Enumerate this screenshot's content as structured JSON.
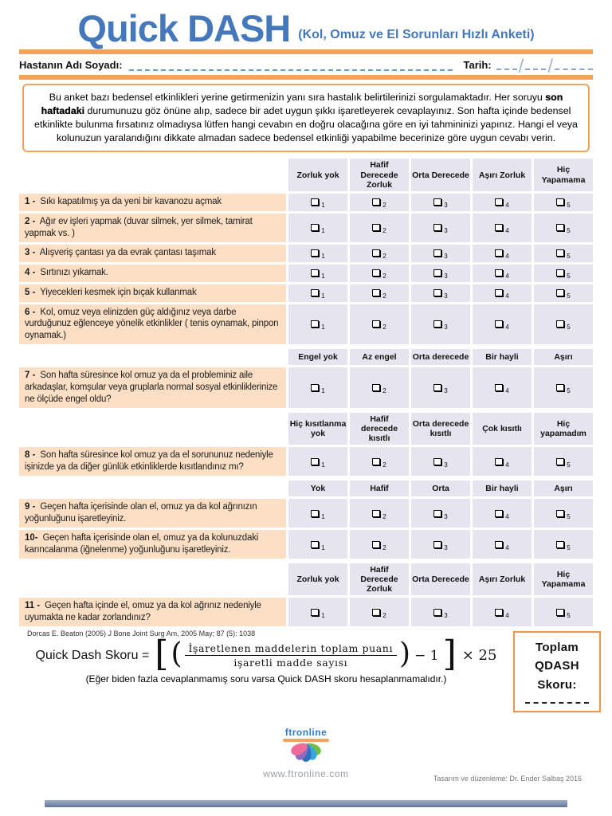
{
  "page": {
    "title": "Quick DASH",
    "subtitle": "(Kol, Omuz ve El Sorunları Hızlı Anketi)"
  },
  "patient_row": {
    "name_label": "Hastanın Adı Soyadı:",
    "date_label": "Tarih:",
    "slash": "/"
  },
  "instructions": {
    "part1": "Bu anket bazı bedensel etkinlikleri yerine getirmenizin yanı sıra hastalık belirtilerinizi sorgulamaktadır. Her soruyu ",
    "bold": "son haftadaki",
    "part2": " durumunuzu göz önüne alıp, sadece bir adet uygun şıkkı işaretleyerek cevaplayınız. Son hafta içinde bedensel etkinlikte bulunma fırsatınız olmadıysa lütfen hangi cevabın en doğru olacağına göre en iyi tahmininizi yapınız. Hangi el veya kolunuzun yaralandığını dikkate almadan sadece bedensel etkinliği yapabilme becerinize göre uygun cevabı verin."
  },
  "scale_numbers": [
    "1",
    "2",
    "3",
    "4",
    "5"
  ],
  "table": {
    "sections": [
      {
        "header": [
          "Zorluk yok",
          "Hafif Derecede Zorluk",
          "Orta Derecede",
          "Aşırı Zorluk",
          "Hiç Yapamama"
        ],
        "questions": [
          {
            "num": "1 -",
            "text": "Sıkı kapatılmış ya da yeni bir kavanozu açmak"
          },
          {
            "num": "2 -",
            "text": "Ağır ev işleri yapmak (duvar silmek, yer silmek, tamirat yapmak vs. )"
          },
          {
            "num": "3 -",
            "text": "Alışveriş çantası ya da evrak çantası taşımak"
          },
          {
            "num": "4 -",
            "text": "Sırtınızı yıkamak."
          },
          {
            "num": "5 -",
            "text": "Yiyecekleri kesmek için bıçak kullanmak"
          },
          {
            "num": "6 -",
            "text": "Kol, omuz veya elinizden güç aldığınız veya darbe vurduğunuz eğlenceye yönelik etkinlikler ( tenis oynamak, pinpon oynamak.)"
          }
        ]
      },
      {
        "header": [
          "Engel yok",
          "Az engel",
          "Orta derecede",
          "Bir hayli",
          "Aşırı"
        ],
        "questions": [
          {
            "num": "7 -",
            "text": "Son hafta süresince kol omuz ya da el probleminiz aile arkadaşlar, komşular veya gruplarla normal sosyal etkinliklerinize ne ölçüde engel oldu?"
          }
        ]
      },
      {
        "header": [
          "Hiç kısıtlanma yok",
          "Hafif derecede kısıtlı",
          "Orta derecede kısıtlı",
          "Çok kısıtlı",
          "Hiç yapamadım"
        ],
        "questions": [
          {
            "num": "8 -",
            "text": "Son hafta süresince kol omuz ya da el sorununuz nedeniyle işinizde ya da diğer günlük etkinliklerde kısıtlandınız mı?"
          }
        ]
      },
      {
        "header": [
          "Yok",
          "Hafif",
          "Orta",
          "Bir hayli",
          "Aşırı"
        ],
        "questions": [
          {
            "num": "9 -",
            "text": "Geçen hafta içerisinde olan el, omuz ya da kol ağrınızın yoğunluğunu işaretleyiniz."
          },
          {
            "num": "10-",
            "text": "Geçen hafta içerisinde olan el, omuz ya da kolunuzdaki karıncalanma (iğnelenme) yoğunluğunu işaretleyiniz."
          }
        ]
      },
      {
        "header": [
          "Zorluk yok",
          "Hafif Derecede Zorluk",
          "Orta Derecede",
          "Aşırı Zorluk",
          "Hiç Yapamama"
        ],
        "questions": [
          {
            "num": "11 -",
            "text": "Geçen hafta içinde el, omuz ya da kol ağrınız nedeniyle uyumakta ne kadar zorlandınız?"
          }
        ]
      }
    ]
  },
  "citation": "Dorcas E. Beaton (2005) J Bone Joint Surg Am, 2005 May; 87 (5): 1038",
  "formula": {
    "lhs": "Quick Dash Skoru =",
    "lbracket": "[",
    "lparen": "(",
    "numerator": "İşaretlenen maddelerin toplam puanı",
    "denominator": "işaretli madde sayısı",
    "rparen": ")",
    "minus_one": "− 1",
    "rbracket": "]",
    "times": "× 25"
  },
  "formula_note": "(Eğer biden fazla cevaplanmamış soru varsa Quick DASH skoru hesaplanmamalıdır.)",
  "score_box": {
    "label": "Toplam QDASH Skoru:"
  },
  "footer": {
    "logo_text": "ftronline",
    "website": "www.ftronline.com",
    "credit": "Tasarım ve düzenleme: Dr. Ender Salbaş 2016"
  },
  "colors": {
    "orange": "#f2a45f",
    "blue": "#4577bb",
    "peach": "#fcdfc4",
    "lav": "#e6e4ef",
    "dashblue": "#7396cc"
  }
}
